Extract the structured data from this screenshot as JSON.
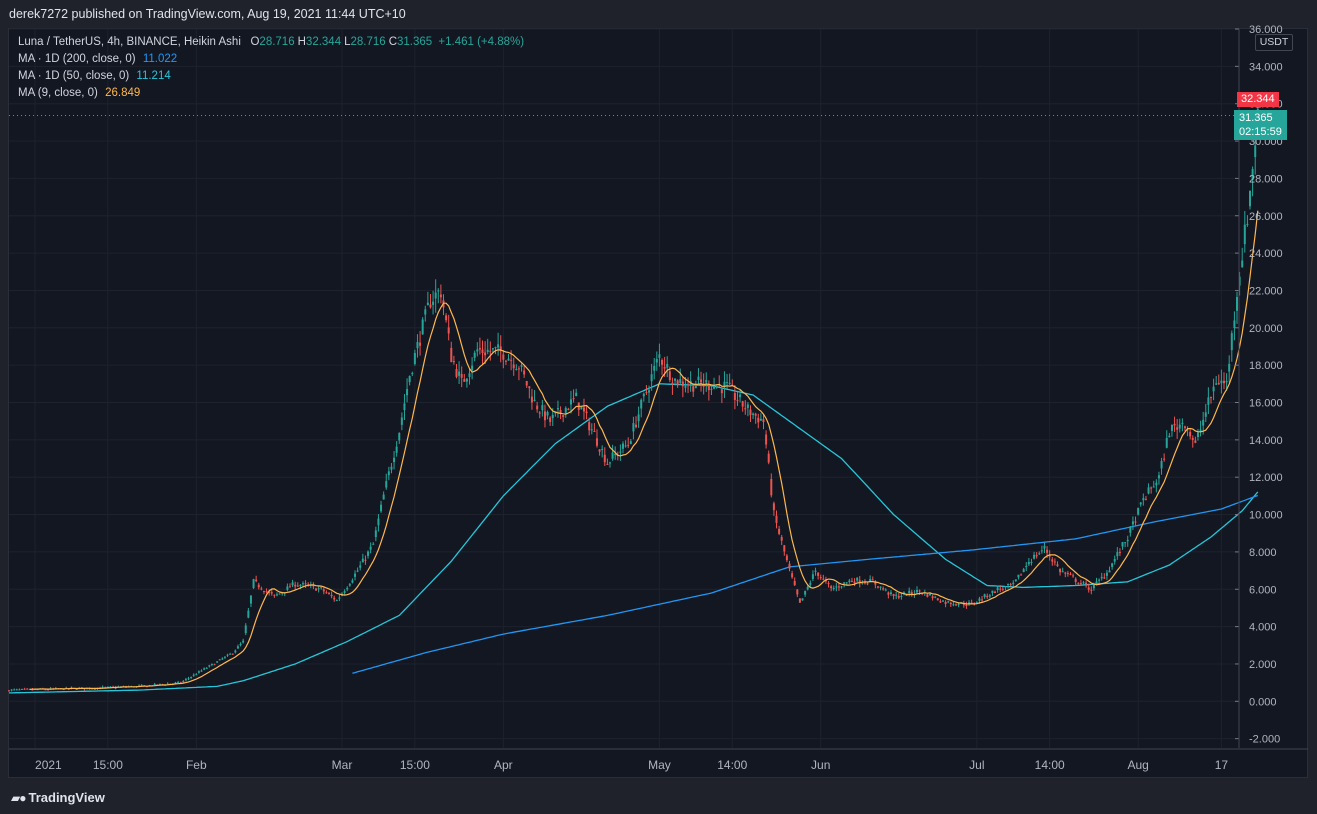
{
  "header": {
    "publisher_line": "derek7272 published on TradingView.com, Aug 19, 2021 11:44 UTC+10"
  },
  "legend": {
    "symbol_line": "Luna / TetherUS, 4h, BINANCE, Heikin Ashi",
    "ohlc": [
      {
        "k": "O",
        "v": "28.716"
      },
      {
        "k": "H",
        "v": "32.344"
      },
      {
        "k": "L",
        "v": "28.716"
      },
      {
        "k": "C",
        "v": "31.365"
      }
    ],
    "change": "+1.461 (+4.88%)",
    "indicators": [
      {
        "label": "MA · 1D (200, close, 0)",
        "value": "11.022",
        "color": "#2196f3"
      },
      {
        "label": "MA · 1D (50, close, 0)",
        "value": "11.214",
        "color": "#26c6da"
      },
      {
        "label": "MA (9, close, 0)",
        "value": "26.849",
        "color": "#ffb74d"
      }
    ]
  },
  "price_axis": {
    "currency": "USDT",
    "high_tag": "32.344",
    "last_tag": "31.365",
    "countdown": "02:15:59"
  },
  "footer": {
    "brand": "TradingView"
  },
  "colors": {
    "up": "#26a69a",
    "down": "#ef5350",
    "background": "#131722",
    "grid": "#1e222d",
    "ma200": "#2196f3",
    "ma50": "#26c6da",
    "ma9": "#ffb74d",
    "high_tag": "#f23645",
    "last_tag": "#26a69a"
  },
  "chart_data": {
    "type": "candlestick",
    "ylim": [
      -2.5,
      36
    ],
    "y_ticks": [
      "-2.000",
      "0.000",
      "2.000",
      "4.000",
      "6.000",
      "8.000",
      "10.000",
      "12.000",
      "14.000",
      "16.000",
      "18.000",
      "20.000",
      "22.000",
      "24.000",
      "26.000",
      "28.000",
      "30.000",
      "32.000",
      "34.000",
      "36.000"
    ],
    "y_tick_values": [
      -2,
      0,
      2,
      4,
      6,
      8,
      10,
      12,
      14,
      16,
      18,
      20,
      22,
      24,
      26,
      28,
      30,
      32,
      34,
      36
    ],
    "x_labels": [
      "2021",
      "15:00",
      "Feb",
      "Mar",
      "15:00",
      "Apr",
      "May",
      "14:00",
      "Jun",
      "Jul",
      "14:00",
      "Aug",
      "17"
    ],
    "x_label_days": [
      0,
      14,
      31,
      59,
      73,
      90,
      120,
      134,
      151,
      181,
      195,
      212,
      228
    ],
    "x_range_days": [
      -5,
      231
    ],
    "price_path": [
      [
        -5,
        0.6
      ],
      [
        10,
        0.7
      ],
      [
        20,
        0.8
      ],
      [
        28,
        1.0
      ],
      [
        33,
        1.8
      ],
      [
        38,
        2.6
      ],
      [
        40,
        3.2
      ],
      [
        42,
        6.4
      ],
      [
        46,
        5.6
      ],
      [
        50,
        6.3
      ],
      [
        55,
        6.0
      ],
      [
        58,
        5.4
      ],
      [
        62,
        7.0
      ],
      [
        65,
        8.4
      ],
      [
        67,
        11.0
      ],
      [
        70,
        14.5
      ],
      [
        72,
        17.5
      ],
      [
        74,
        19.5
      ],
      [
        76,
        21.5
      ],
      [
        78,
        22.0
      ],
      [
        80,
        18.5
      ],
      [
        82,
        17.0
      ],
      [
        85,
        18.8
      ],
      [
        90,
        18.7
      ],
      [
        93,
        18.0
      ],
      [
        96,
        16.0
      ],
      [
        99,
        15.0
      ],
      [
        104,
        16.2
      ],
      [
        108,
        14.0
      ],
      [
        110,
        12.8
      ],
      [
        114,
        13.8
      ],
      [
        118,
        17.0
      ],
      [
        120,
        18.5
      ],
      [
        123,
        17.2
      ],
      [
        126,
        17.0
      ],
      [
        130,
        17.0
      ],
      [
        133,
        16.8
      ],
      [
        137,
        15.6
      ],
      [
        140,
        15.0
      ],
      [
        142,
        10.0
      ],
      [
        145,
        7.0
      ],
      [
        147,
        5.2
      ],
      [
        150,
        7.0
      ],
      [
        153,
        6.0
      ],
      [
        157,
        6.5
      ],
      [
        161,
        6.4
      ],
      [
        165,
        5.6
      ],
      [
        170,
        5.9
      ],
      [
        175,
        5.3
      ],
      [
        180,
        5.2
      ],
      [
        185,
        6.0
      ],
      [
        188,
        6.2
      ],
      [
        191,
        7.5
      ],
      [
        194,
        8.2
      ],
      [
        197,
        7.0
      ],
      [
        200,
        6.5
      ],
      [
        203,
        6.0
      ],
      [
        206,
        6.9
      ],
      [
        210,
        8.8
      ],
      [
        213,
        10.8
      ],
      [
        216,
        12.0
      ],
      [
        218,
        14.5
      ],
      [
        221,
        15.0
      ],
      [
        223,
        13.7
      ],
      [
        225,
        15.5
      ],
      [
        227,
        17.2
      ],
      [
        229,
        17.0
      ],
      [
        231,
        22.0
      ],
      [
        233,
        26.0
      ],
      [
        235,
        31.365
      ]
    ],
    "ma200_path": [
      [
        61,
        1.5
      ],
      [
        75,
        2.6
      ],
      [
        90,
        3.6
      ],
      [
        110,
        4.6
      ],
      [
        130,
        5.8
      ],
      [
        145,
        7.2
      ],
      [
        160,
        7.6
      ],
      [
        180,
        8.1
      ],
      [
        200,
        8.7
      ],
      [
        215,
        9.6
      ],
      [
        228,
        10.3
      ],
      [
        235,
        11.022
      ]
    ],
    "ma50_path": [
      [
        -5,
        0.45
      ],
      [
        20,
        0.6
      ],
      [
        35,
        0.8
      ],
      [
        40,
        1.1
      ],
      [
        50,
        2.0
      ],
      [
        60,
        3.2
      ],
      [
        70,
        4.6
      ],
      [
        80,
        7.5
      ],
      [
        90,
        11.0
      ],
      [
        100,
        13.8
      ],
      [
        110,
        15.8
      ],
      [
        120,
        17.0
      ],
      [
        130,
        16.9
      ],
      [
        138,
        16.4
      ],
      [
        145,
        15.0
      ],
      [
        155,
        13.0
      ],
      [
        165,
        10.0
      ],
      [
        175,
        7.6
      ],
      [
        183,
        6.2
      ],
      [
        190,
        6.1
      ],
      [
        200,
        6.2
      ],
      [
        210,
        6.4
      ],
      [
        218,
        7.3
      ],
      [
        226,
        8.8
      ],
      [
        232,
        10.2
      ],
      [
        235,
        11.214
      ]
    ],
    "series": [
      {
        "name": "Luna / TetherUS",
        "type": "candles",
        "last": 31.365,
        "high": 32.344
      },
      {
        "name": "MA · 1D (200, close, 0)",
        "last": 11.022
      },
      {
        "name": "MA · 1D (50, close, 0)",
        "last": 11.214
      },
      {
        "name": "MA (9, close, 0)",
        "last": 26.849
      }
    ]
  }
}
